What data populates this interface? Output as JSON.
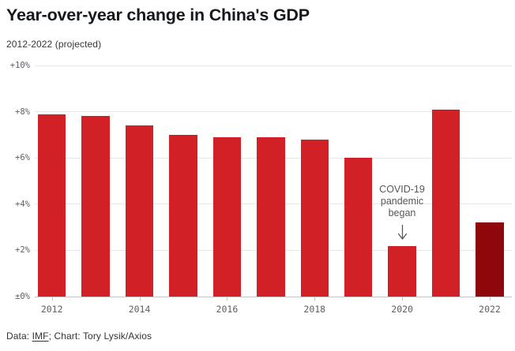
{
  "chart_data": {
    "type": "bar",
    "title": "Year-over-year change in China's GDP",
    "subtitle": "2012-2022 (projected)",
    "categories": [
      "2012",
      "2013",
      "2014",
      "2015",
      "2016",
      "2017",
      "2018",
      "2019",
      "2020",
      "2021",
      "2022"
    ],
    "values": [
      7.9,
      7.8,
      7.4,
      7.0,
      6.9,
      6.9,
      6.8,
      6.0,
      2.2,
      8.1,
      3.2
    ],
    "ylim": [
      0,
      10
    ],
    "yticks": [
      {
        "value": 0,
        "label": "±0%"
      },
      {
        "value": 2,
        "label": "+2%"
      },
      {
        "value": 4,
        "label": "+4%"
      },
      {
        "value": 6,
        "label": "+6%"
      },
      {
        "value": 8,
        "label": "+8%"
      },
      {
        "value": 10,
        "label": "+10%"
      }
    ],
    "xticks": [
      {
        "index": 0,
        "label": "2012"
      },
      {
        "index": 2,
        "label": "2014"
      },
      {
        "index": 4,
        "label": "2016"
      },
      {
        "index": 6,
        "label": "2018"
      },
      {
        "index": 8,
        "label": "2020"
      },
      {
        "index": 10,
        "label": "2022"
      }
    ],
    "annotation": {
      "text": "COVID-19\npandemic\nbegan",
      "target_category": "2020"
    },
    "grid": true,
    "legend": false
  },
  "colors": {
    "bar": "#d12127",
    "bar_projected": "#8e070b",
    "gridline": "#e6e7ea",
    "baseline": "#c2c3c7",
    "axis_text": "#5c6066",
    "annotation_text": "#55585c"
  },
  "footer": {
    "prefix": "Data: ",
    "source_link": "IMF",
    "suffix": "; Chart: Tory Lysik/Axios"
  }
}
